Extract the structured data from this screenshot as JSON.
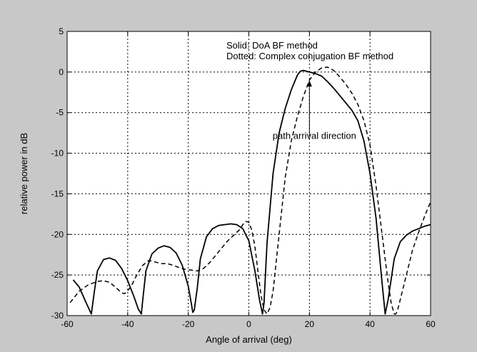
{
  "chart_data": {
    "type": "line",
    "title": "",
    "xlabel": "Angle of arrival (deg)",
    "ylabel": "relative power in dB",
    "xlim": [
      -60,
      60
    ],
    "ylim": [
      -30,
      5
    ],
    "xticks": [
      -60,
      -40,
      -20,
      0,
      20,
      40,
      60
    ],
    "yticks": [
      5,
      0,
      -5,
      -10,
      -15,
      -20,
      -25,
      -30
    ],
    "grid": true,
    "series": [
      {
        "name": "Solid: DoA BF method",
        "style": "solid",
        "x": [
          -58,
          -56,
          -54,
          -53,
          -52,
          -51,
          -50,
          -48,
          -46,
          -44,
          -42,
          -40,
          -38,
          -36.5,
          -35.5,
          -35,
          -34,
          -32,
          -30,
          -28,
          -26,
          -24,
          -22,
          -20,
          -19,
          -18.5,
          -18,
          -17,
          -16,
          -14,
          -12,
          -10,
          -8,
          -6,
          -4,
          -2,
          0,
          2,
          3.5,
          4.5,
          5,
          6,
          8,
          10,
          12,
          14,
          16,
          17,
          18,
          20,
          22,
          24,
          26,
          28,
          30,
          32,
          34,
          36,
          38,
          40,
          42,
          44,
          45,
          46,
          48,
          50,
          52,
          54,
          56,
          58,
          60
        ],
        "y": [
          -25.6,
          -26.5,
          -28.2,
          -29.0,
          -29.8,
          -27.0,
          -24.5,
          -23.1,
          -22.9,
          -23.2,
          -24.2,
          -25.7,
          -27.6,
          -29.2,
          -29.8,
          -28.0,
          -24.5,
          -22.4,
          -21.7,
          -21.4,
          -21.6,
          -22.3,
          -23.8,
          -26.4,
          -28.5,
          -29.6,
          -29.3,
          -26.5,
          -23.0,
          -20.3,
          -19.3,
          -18.9,
          -18.8,
          -18.7,
          -18.8,
          -19.3,
          -20.8,
          -24.5,
          -28.0,
          -29.8,
          -28.5,
          -21.0,
          -12.5,
          -7.5,
          -4.5,
          -2.2,
          -0.4,
          0.1,
          0.2,
          0.0,
          -0.2,
          -0.5,
          -1.2,
          -2.0,
          -2.9,
          -3.8,
          -4.7,
          -6.0,
          -8.5,
          -12.5,
          -18.0,
          -26.0,
          -29.8,
          -28.0,
          -23.0,
          -20.9,
          -20.1,
          -19.6,
          -19.3,
          -19.0,
          -18.8
        ]
      },
      {
        "name": "Dotted: Complex conjugation BF method",
        "style": "dashed",
        "x": [
          -59,
          -56,
          -53,
          -50,
          -48,
          -46,
          -44,
          -42,
          -41,
          -39,
          -37,
          -35,
          -33,
          -31,
          -29,
          -27,
          -25,
          -23,
          -21,
          -19,
          -17,
          -15,
          -13,
          -11,
          -9,
          -7,
          -5,
          -3,
          -2,
          -1,
          0,
          1,
          2,
          3,
          4,
          5,
          6,
          7,
          8,
          10,
          12,
          14,
          16,
          18,
          20,
          22,
          24,
          26,
          28,
          30,
          32,
          34,
          36,
          38,
          40,
          42,
          44,
          46,
          47,
          48,
          48.5,
          49,
          50,
          52,
          54,
          56,
          58,
          60
        ],
        "y": [
          -28.4,
          -27.0,
          -26.2,
          -25.8,
          -25.7,
          -25.9,
          -26.5,
          -27.2,
          -27.3,
          -26.5,
          -25.0,
          -23.8,
          -23.2,
          -23.4,
          -23.6,
          -23.6,
          -23.8,
          -24.1,
          -24.3,
          -24.4,
          -24.5,
          -24.2,
          -23.5,
          -22.6,
          -21.7,
          -20.8,
          -20.1,
          -19.4,
          -18.8,
          -18.4,
          -18.5,
          -19.5,
          -21.5,
          -24.5,
          -27.5,
          -29.3,
          -29.8,
          -29.0,
          -27.0,
          -20.0,
          -13.0,
          -8.5,
          -5.5,
          -3.0,
          -1.0,
          0.0,
          0.5,
          0.6,
          0.2,
          -0.6,
          -1.5,
          -2.6,
          -4.0,
          -6.0,
          -9.0,
          -14.0,
          -20.0,
          -26.0,
          -28.5,
          -29.8,
          -29.8,
          -29.5,
          -28.0,
          -25.0,
          -22.0,
          -19.8,
          -17.8,
          -16.0
        ]
      }
    ],
    "annotations": [
      {
        "text": "Solid: DoA BF method"
      },
      {
        "text": "Dotted: Complex conjugation BF method"
      },
      {
        "text": "path arrival direction",
        "arrow_x": 20,
        "arrow_from_y": -7.8,
        "arrow_to_y": -1.0
      }
    ]
  }
}
